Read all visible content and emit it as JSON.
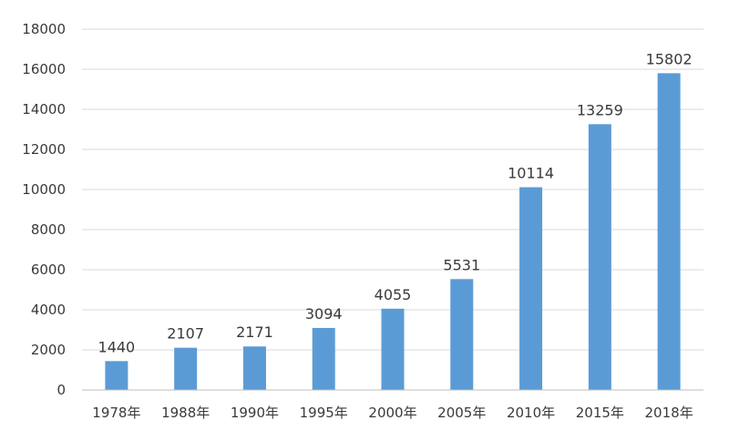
{
  "chart_data": {
    "type": "bar",
    "categories": [
      "1978年",
      "1988年",
      "1990年",
      "1995年",
      "2000年",
      "2005年",
      "2010年",
      "2015年",
      "2018年"
    ],
    "values": [
      1440,
      2107,
      2171,
      3094,
      4055,
      5531,
      10114,
      13259,
      15802
    ],
    "ylim": [
      0,
      18000
    ],
    "yticks": [
      0,
      2000,
      4000,
      6000,
      8000,
      10000,
      12000,
      14000,
      16000,
      18000
    ],
    "grid": true,
    "legend": "none",
    "bar_color": "#5b9bd5",
    "grid_color": "#d9d9d9",
    "axis_color": "#bfbfbf"
  }
}
